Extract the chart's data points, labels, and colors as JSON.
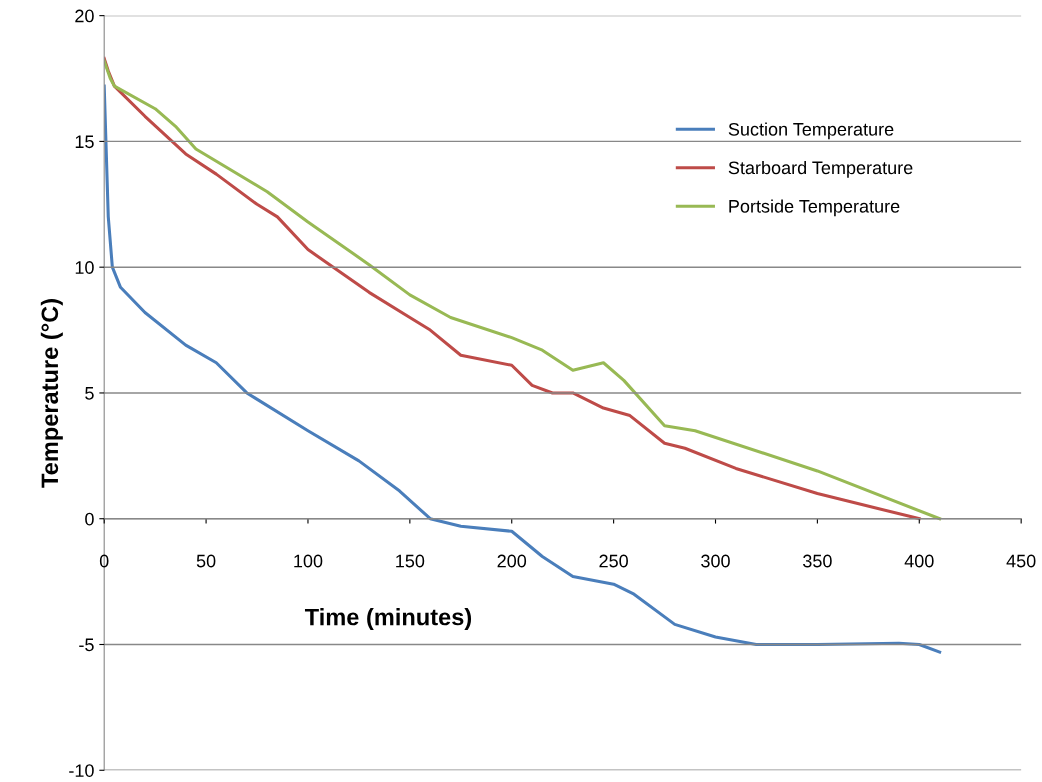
{
  "chart_data": {
    "type": "line",
    "xlabel": "Time (minutes)",
    "ylabel": "Temperature (°C)",
    "xlim": [
      0,
      450
    ],
    "xticks": [
      0,
      50,
      100,
      150,
      200,
      250,
      300,
      350,
      400,
      450
    ],
    "ylim": [
      -10,
      20
    ],
    "yticks": [
      -10,
      -5,
      0,
      5,
      10,
      15,
      20
    ],
    "grid": "y",
    "legend": "top right",
    "marker": "none",
    "line_style": "solid",
    "series": [
      {
        "name": "Suction Temperature",
        "color": "#4a7ebb",
        "x": [
          0,
          2,
          4,
          8,
          20,
          40,
          55,
          70,
          100,
          125,
          145,
          160,
          175,
          200,
          215,
          230,
          250,
          260,
          280,
          300,
          320,
          350,
          390,
          400,
          410
        ],
        "values": [
          17.2,
          12,
          10,
          9.2,
          8.2,
          6.9,
          6.2,
          5.0,
          3.5,
          2.3,
          1.1,
          0,
          -0.3,
          -0.5,
          -1.5,
          -2.3,
          -2.6,
          -3.0,
          -4.2,
          -4.7,
          -5.0,
          -5.0,
          -4.95,
          -5.0,
          -5.3
        ]
      },
      {
        "name": "Starboard Temperature",
        "color": "#be4b48",
        "x": [
          0,
          2,
          5,
          20,
          40,
          55,
          75,
          85,
          100,
          130,
          150,
          160,
          175,
          200,
          210,
          220,
          230,
          245,
          258,
          275,
          285,
          310,
          350,
          400
        ],
        "values": [
          18.3,
          17.8,
          17.2,
          16.0,
          14.5,
          13.7,
          12.5,
          12.0,
          10.7,
          9.0,
          8.0,
          7.5,
          6.5,
          6.1,
          5.3,
          5.0,
          5.0,
          4.4,
          4.1,
          3.0,
          2.8,
          2.0,
          1.0,
          0
        ]
      },
      {
        "name": "Portside Temperature",
        "color": "#98b954",
        "x": [
          0,
          3,
          5,
          25,
          35,
          45,
          80,
          100,
          130,
          150,
          170,
          200,
          215,
          230,
          245,
          255,
          275,
          290,
          350,
          410
        ],
        "values": [
          18.2,
          17.5,
          17.2,
          16.3,
          15.6,
          14.7,
          13.0,
          11.8,
          10.1,
          8.9,
          8.0,
          7.2,
          6.7,
          5.9,
          6.2,
          5.5,
          3.7,
          3.5,
          1.9,
          0
        ]
      }
    ]
  }
}
